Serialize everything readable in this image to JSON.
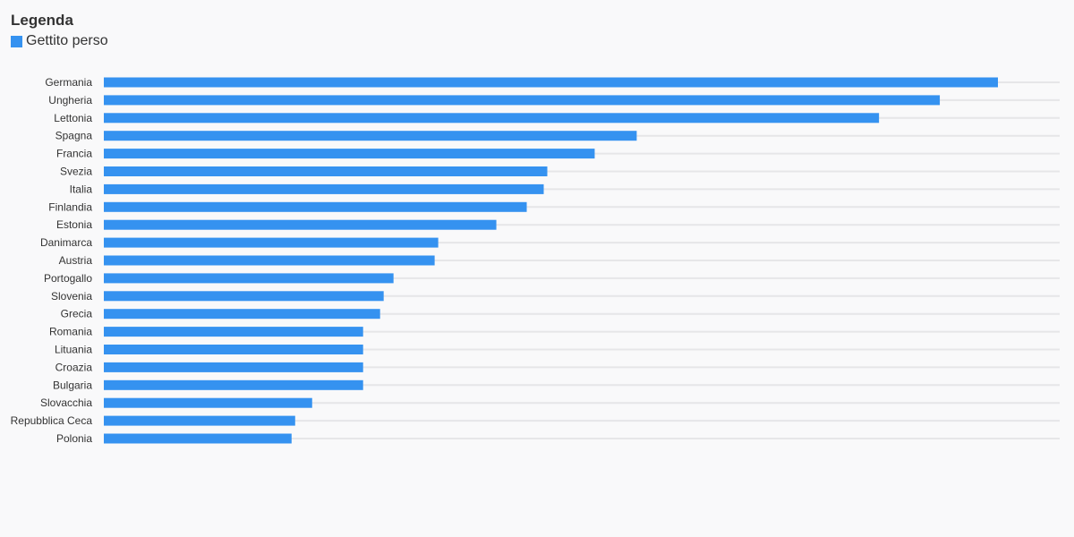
{
  "legend": {
    "title": "Legenda",
    "series_label": "Gettito perso",
    "series_color": "#3592f0"
  },
  "colors": {
    "bar": "#3592f0",
    "grid": "#e6e6e8",
    "background": "#f9f9fa"
  },
  "chart_data": {
    "type": "bar",
    "orientation": "horizontal",
    "title": "",
    "xlabel": "",
    "ylabel": "",
    "xlim": [
      0,
      100
    ],
    "grid": true,
    "legend_position": "top-left",
    "series": [
      {
        "name": "Gettito perso",
        "values": [
          100,
          93.5,
          86.7,
          59.6,
          54.9,
          49.6,
          49.2,
          47.3,
          43.9,
          37.4,
          37.0,
          32.4,
          31.3,
          30.9,
          29.0,
          29.0,
          29.0,
          29.0,
          23.3,
          21.4,
          21.0
        ]
      }
    ],
    "categories": [
      "Germania",
      "Ungheria",
      "Lettonia",
      "Spagna",
      "Francia",
      "Svezia",
      "Italia",
      "Finlandia",
      "Estonia",
      "Danimarca",
      "Austria",
      "Portogallo",
      "Slovenia",
      "Grecia",
      "Romania",
      "Lituania",
      "Croazia",
      "Bulgaria",
      "Slovacchia",
      "Repubblica Ceca",
      "Polonia"
    ]
  }
}
